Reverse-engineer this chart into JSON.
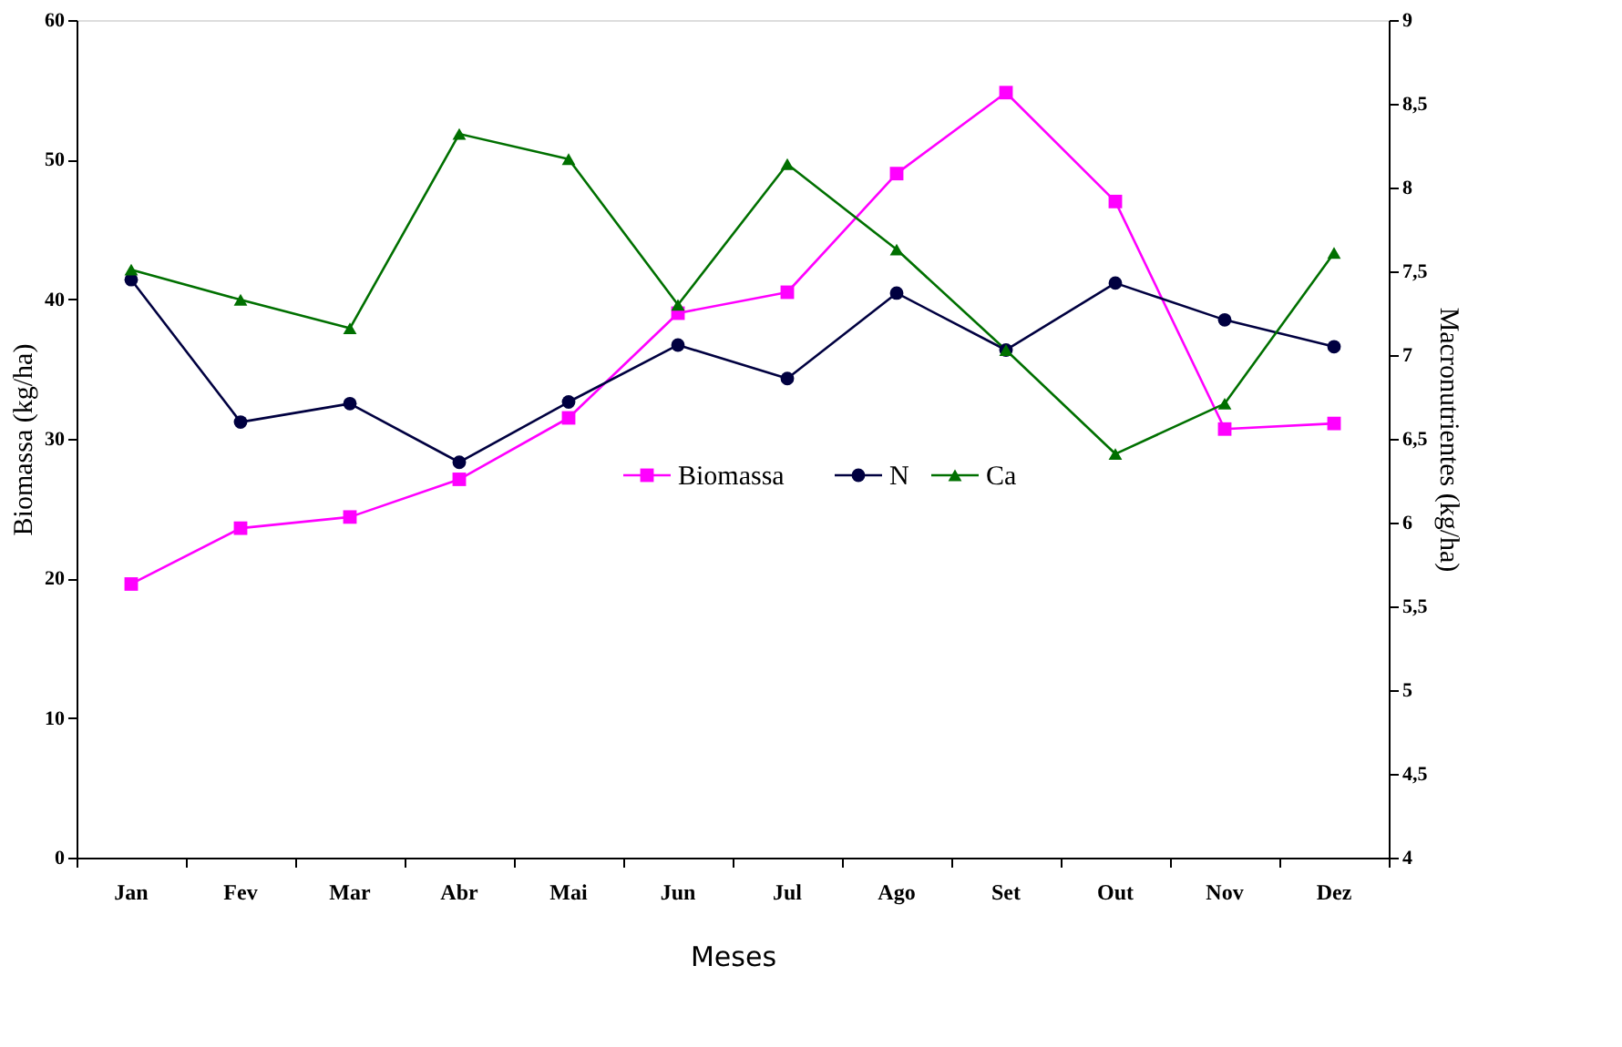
{
  "chart_data": {
    "type": "line",
    "xlabel": "Meses",
    "ylabel": "Biomassa (kg/ha)",
    "y2label": "Macronutrientes (kg/ha)",
    "categories": [
      "Jan",
      "Fev",
      "Mar",
      "Abr",
      "Mai",
      "Jun",
      "Jul",
      "Ago",
      "Set",
      "Out",
      "Nov",
      "Dez"
    ],
    "ylim": [
      0,
      60
    ],
    "yticks": [
      0,
      10,
      20,
      30,
      40,
      50,
      60
    ],
    "y2lim": [
      4,
      9
    ],
    "y2ticks": [
      4,
      {
        "value": 4.5,
        "label": "4,5"
      },
      5,
      {
        "value": 5.5,
        "label": "5,5"
      },
      6,
      {
        "value": 6.5,
        "label": "6,5"
      },
      7,
      {
        "value": 7.5,
        "label": "7,5"
      },
      8,
      {
        "value": 8.5,
        "label": "8,5"
      },
      9
    ],
    "grid": false,
    "legend": "center",
    "line_style": "solid",
    "series": [
      {
        "name": "Biomassa",
        "color": "#ff00ff",
        "marker": "square",
        "values": [
          19.6,
          23.6,
          24.4,
          27.1,
          31.5,
          39.0,
          40.5,
          49.0,
          54.8,
          47.0,
          30.7,
          31.1
        ]
      },
      {
        "name": "N",
        "color": "#000040",
        "marker": "circle",
        "axis": "y2",
        "values": [
          7.45,
          6.6,
          6.71,
          6.36,
          6.72,
          7.06,
          6.86,
          7.37,
          7.03,
          7.43,
          7.21,
          7.05
        ]
      },
      {
        "name": "Ca",
        "color": "#007000",
        "marker": "triangle",
        "axis": "y2",
        "values": [
          7.51,
          7.33,
          7.16,
          8.32,
          8.17,
          7.3,
          8.14,
          7.63,
          7.03,
          6.41,
          6.71,
          7.61
        ]
      }
    ]
  }
}
